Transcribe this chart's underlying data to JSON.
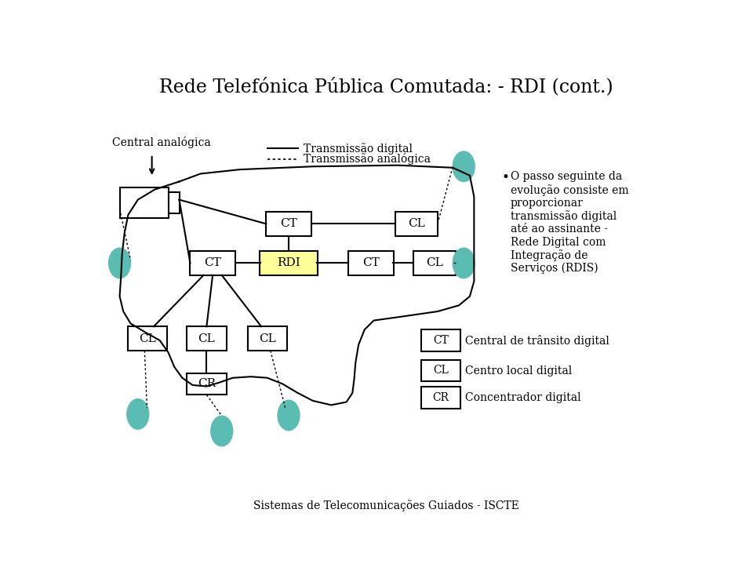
{
  "title": "Rede Telefónica Pública Comutada: - RDI (cont.)",
  "subtitle": "Sistemas de Telecomunicações Guiados - ISCTE",
  "bg_color": "#ffffff",
  "teal_color": "#5bbcb4",
  "yellow_color": "#ffff99",
  "legend_line_solid": "Transmissão digital",
  "legend_line_dotted": "Transmissão analógica",
  "bullet_text": "O passo seguinte da\nevolução consiste em\nproporcionar\ntransmissão digital\naté ao assinante -\nRede Digital com\nIntegração de\nServiços (RDIS)",
  "central_analogica_label": "Central analógica",
  "legend_items": [
    [
      "CT",
      "Central de trânsito digital"
    ],
    [
      "CL",
      "Centro local digital"
    ],
    [
      "CR",
      "Concentrador digital"
    ]
  ]
}
